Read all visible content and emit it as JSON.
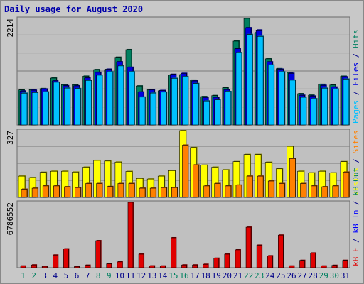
{
  "title": "Daily usage for August 2020",
  "colors": {
    "pages": "#00c0ff",
    "files": "#0000e0",
    "hits": "#008060",
    "sites": "#ff8000",
    "visits": "#ffff00",
    "kbin": "#0000ff",
    "kbout": "#008060",
    "kbf": "#e00000",
    "weekday_label": "#000088",
    "weekend_label": "#008060",
    "plot_bg": "#c0c0c0",
    "grid": "#7a7a7a"
  },
  "chart_data": [
    {
      "type": "bar",
      "name": "hits-files-pages",
      "ylabel_max": "2214",
      "ylim": [
        0,
        2214
      ],
      "legend": [
        "Pages",
        "Files",
        "Hits"
      ],
      "categories": [
        "1",
        "2",
        "3",
        "4",
        "5",
        "6",
        "7",
        "8",
        "9",
        "10",
        "11",
        "12",
        "13",
        "14",
        "15",
        "16",
        "17",
        "18",
        "19",
        "20",
        "21",
        "22",
        "23",
        "24",
        "25",
        "26",
        "27",
        "28",
        "29",
        "30",
        "31"
      ],
      "series": [
        {
          "name": "Hits",
          "values": [
            727,
            734,
            755,
            974,
            838,
            836,
            1013,
            1150,
            1150,
            1407,
            1565,
            810,
            732,
            710,
            1035,
            1047,
            931,
            589,
            610,
            773,
            1742,
            2214,
            1916,
            1374,
            1169,
            1090,
            649,
            618,
            843,
            830,
            1012
          ]
        },
        {
          "name": "Files",
          "values": [
            705,
            721,
            747,
            916,
            815,
            813,
            977,
            1094,
            1159,
            1312,
            1199,
            684,
            727,
            716,
            1052,
            1073,
            915,
            571,
            574,
            735,
            1583,
            2020,
            1973,
            1311,
            1159,
            1073,
            616,
            600,
            822,
            787,
            1000
          ]
        },
        {
          "name": "Pages",
          "values": [
            660,
            673,
            686,
            887,
            765,
            756,
            925,
            1034,
            1104,
            1227,
            1105,
            579,
            662,
            682,
            969,
            1004,
            860,
            499,
            521,
            694,
            1504,
            1879,
            1840,
            1245,
            1104,
            931,
            574,
            545,
            764,
            746,
            953
          ]
        }
      ]
    },
    {
      "type": "bar",
      "name": "visits-sites",
      "ylabel_max": "327",
      "ylim": [
        0,
        327
      ],
      "legend": [
        "Visits",
        "Sites"
      ],
      "categories": [
        "1",
        "2",
        "3",
        "4",
        "5",
        "6",
        "7",
        "8",
        "9",
        "10",
        "11",
        "12",
        "13",
        "14",
        "15",
        "16",
        "17",
        "18",
        "19",
        "20",
        "21",
        "22",
        "23",
        "24",
        "25",
        "26",
        "27",
        "28",
        "29",
        "30",
        "31"
      ],
      "series": [
        {
          "name": "Visits",
          "values": [
            104,
            97,
            123,
            128,
            128,
            124,
            148,
            181,
            178,
            173,
            127,
            93,
            90,
            104,
            131,
            327,
            244,
            158,
            148,
            135,
            175,
            210,
            210,
            172,
            140,
            250,
            128,
            120,
            128,
            120,
            175
          ]
        },
        {
          "name": "Sites",
          "values": [
            40,
            45,
            56,
            56,
            52,
            48,
            68,
            68,
            53,
            68,
            68,
            45,
            45,
            48,
            48,
            256,
            159,
            56,
            68,
            56,
            60,
            104,
            104,
            80,
            68,
            190,
            68,
            56,
            52,
            56,
            124
          ]
        }
      ]
    },
    {
      "type": "bar",
      "name": "kbytes",
      "ylabel_max": "6786552",
      "ylim": [
        0,
        6786552
      ],
      "legend": [
        "KB F",
        "KB In",
        "KB Out"
      ],
      "categories": [
        "1",
        "2",
        "3",
        "4",
        "5",
        "6",
        "7",
        "8",
        "9",
        "10",
        "11",
        "12",
        "13",
        "14",
        "15",
        "16",
        "17",
        "18",
        "19",
        "20",
        "21",
        "22",
        "23",
        "24",
        "25",
        "26",
        "27",
        "28",
        "29",
        "30",
        "31"
      ],
      "series": [
        {
          "name": "KB F",
          "values": [
            170000,
            280000,
            140000,
            1310000,
            1950000,
            120000,
            250000,
            2800000,
            400000,
            600000,
            6786552,
            1400000,
            180000,
            170000,
            3100000,
            280000,
            280000,
            350000,
            980000,
            1400000,
            1850000,
            4200000,
            2330000,
            1230000,
            3380000,
            170000,
            760000,
            1520000,
            170000,
            240000,
            760000
          ]
        }
      ]
    }
  ],
  "right_labels": {
    "panel1": [
      {
        "text": "Pages",
        "color": "#00c0ff"
      },
      {
        "text": " / ",
        "color": "#000088"
      },
      {
        "text": "Files",
        "color": "#0000e0"
      },
      {
        "text": " / ",
        "color": "#000088"
      },
      {
        "text": "Hits",
        "color": "#008060"
      }
    ],
    "panel2": [
      {
        "text": "Visits",
        "color": "#ffff00"
      },
      {
        "text": " / ",
        "color": "#000088"
      },
      {
        "text": "Sites",
        "color": "#ff8000"
      }
    ],
    "panel3": [
      {
        "text": "kB F",
        "color": "#e00000"
      },
      {
        "text": " / ",
        "color": "#000088"
      },
      {
        "text": "kB In",
        "color": "#0000ff"
      },
      {
        "text": " / ",
        "color": "#000088"
      },
      {
        "text": "kB Out",
        "color": "#008060"
      }
    ]
  },
  "x_days": [
    "1",
    "2",
    "3",
    "4",
    "5",
    "6",
    "7",
    "8",
    "9",
    "10",
    "11",
    "12",
    "13",
    "14",
    "15",
    "16",
    "17",
    "18",
    "19",
    "20",
    "21",
    "22",
    "23",
    "24",
    "25",
    "26",
    "27",
    "28",
    "29",
    "30",
    "31"
  ],
  "weekend_days": [
    "1",
    "2",
    "8",
    "9",
    "15",
    "16",
    "22",
    "23",
    "29",
    "30"
  ]
}
